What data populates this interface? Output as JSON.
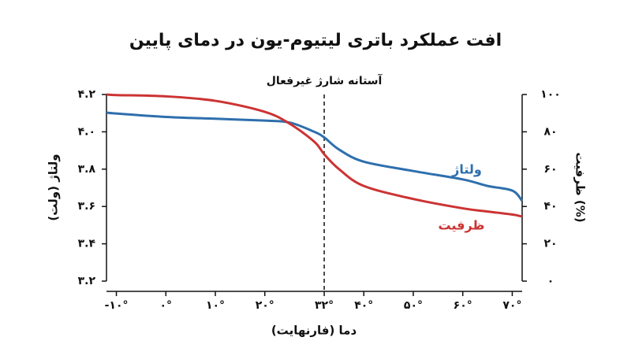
{
  "chart_data": {
    "type": "line",
    "title": "افت عملکرد باتری لیتیوم-یون در دمای پایین",
    "x_label": "دما (فارنهایت)",
    "y_label": "ولتاژ (ولت)",
    "y2_label": "ظرفیت (%)",
    "annotation": {
      "text": "آستانه شارژ غیرفعال",
      "x": 32
    },
    "x": [
      -12,
      -10,
      0,
      10,
      20,
      25,
      30,
      32,
      35,
      40,
      50,
      60,
      65,
      70,
      72
    ],
    "series": [
      {
        "name": "ولتاژ",
        "color": "#2e6fad",
        "axis": "y",
        "values": [
          4.103,
          4.098,
          4.08,
          4.07,
          4.06,
          4.05,
          4.0,
          3.97,
          3.905,
          3.84,
          3.79,
          3.745,
          3.71,
          3.685,
          3.63
        ]
      },
      {
        "name": "ظرفیت",
        "color": "#cc3333",
        "axis": "y2",
        "values": [
          100,
          99.7,
          99,
          96.6,
          90.7,
          84.4,
          74.7,
          68,
          60,
          51,
          44,
          39,
          37.3,
          35.7,
          34.6
        ]
      }
    ],
    "xlim": [
      -12,
      72
    ],
    "xticks": [
      {
        "value": -10,
        "label": "-۱۰°"
      },
      {
        "value": 0,
        "label": "۰°"
      },
      {
        "value": 10,
        "label": "۱۰°"
      },
      {
        "value": 20,
        "label": "۲۰°"
      },
      {
        "value": 32,
        "label": "۳۲°"
      },
      {
        "value": 40,
        "label": "۴۰°"
      },
      {
        "value": 50,
        "label": "۵۰°"
      },
      {
        "value": 60,
        "label": "۶۰°"
      },
      {
        "value": 70,
        "label": "۷۰°"
      }
    ],
    "ylim": [
      3.2,
      4.2
    ],
    "yticks": [
      {
        "value": 3.2,
        "label": "۳.۲"
      },
      {
        "value": 3.4,
        "label": "۳.۴"
      },
      {
        "value": 3.6,
        "label": "۳.۶"
      },
      {
        "value": 3.8,
        "label": "۳.۸"
      },
      {
        "value": 4.0,
        "label": "۴.۰"
      },
      {
        "value": 4.2,
        "label": "۴.۲"
      }
    ],
    "y2lim": [
      0,
      100
    ],
    "y2ticks": [
      {
        "value": 0,
        "label": "۰"
      },
      {
        "value": 20,
        "label": "۲۰"
      },
      {
        "value": 40,
        "label": "۴۰"
      },
      {
        "value": 60,
        "label": "۶۰"
      },
      {
        "value": 80,
        "label": "۸۰"
      },
      {
        "value": 100,
        "label": "۱۰۰"
      }
    ]
  }
}
